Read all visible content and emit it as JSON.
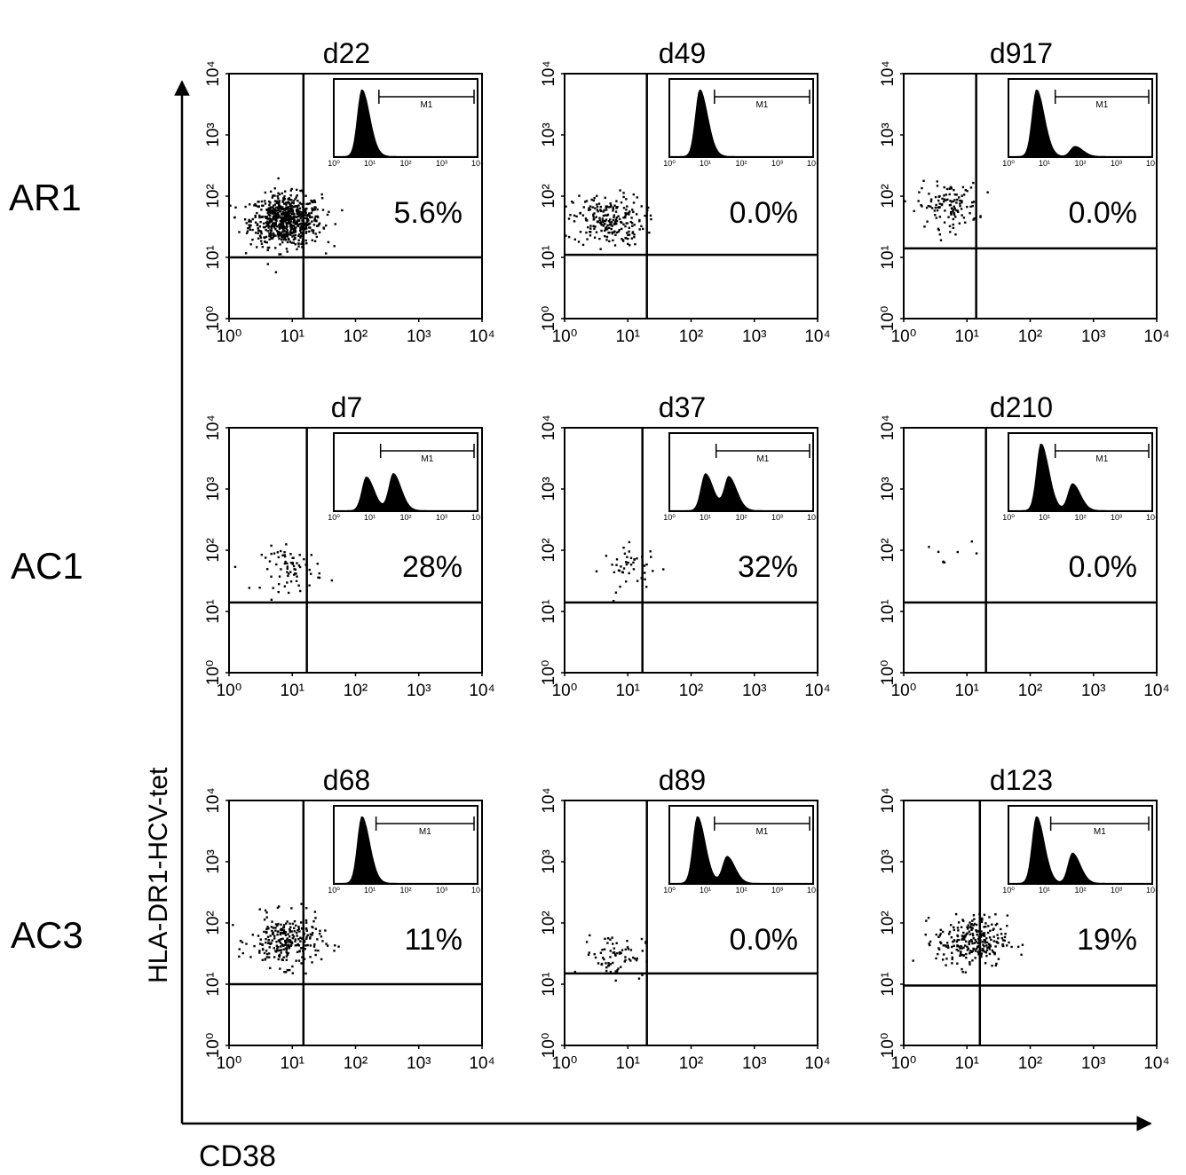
{
  "figure": {
    "x_axis_label": "CD38",
    "y_axis_label": "HLA-DR1-HCV-tet",
    "row_labels": [
      "AR1",
      "AC1",
      "AC3"
    ]
  },
  "chart_data": [
    {
      "type": "scatter",
      "row": "AR1",
      "title": "d22",
      "percent_label": "5.6%",
      "xlim": [
        1,
        10000
      ],
      "ylim": [
        1,
        10000
      ],
      "scale": "log",
      "tick_labels": [
        "10⁰",
        "10¹",
        "10²",
        "10³",
        "10⁴"
      ],
      "x_gate": 15,
      "y_gate": 10,
      "cluster": {
        "center_x": 8,
        "center_y": 40,
        "n_points": 700
      },
      "inset_histogram": {
        "x_tick_labels": [
          "10⁰",
          "10¹",
          "10²",
          "10³",
          "10⁴"
        ],
        "marker_label": "M1",
        "marker_range": [
          18,
          10000
        ],
        "peaks": [
          [
            6,
            1.0
          ]
        ]
      }
    },
    {
      "type": "scatter",
      "row": "AR1",
      "title": "d49",
      "percent_label": "0.0%",
      "xlim": [
        1,
        10000
      ],
      "ylim": [
        1,
        10000
      ],
      "scale": "log",
      "tick_labels": [
        "10⁰",
        "10¹",
        "10²",
        "10³",
        "10⁴"
      ],
      "x_gate": 20,
      "y_gate": 11,
      "cluster": {
        "center_x": 5,
        "center_y": 40,
        "n_points": 220
      },
      "inset_histogram": {
        "x_tick_labels": [
          "10⁰",
          "10¹",
          "10²",
          "10³",
          "10⁴"
        ],
        "marker_label": "M1",
        "marker_range": [
          18,
          10000
        ],
        "peaks": [
          [
            7,
            1.0
          ]
        ]
      }
    },
    {
      "type": "scatter",
      "row": "AR1",
      "title": "d917",
      "percent_label": "0.0%",
      "xlim": [
        1,
        10000
      ],
      "ylim": [
        1,
        10000
      ],
      "scale": "log",
      "tick_labels": [
        "10⁰",
        "10¹",
        "10²",
        "10³",
        "10⁴"
      ],
      "x_gate": 14,
      "y_gate": 14,
      "cluster": {
        "center_x": 5,
        "center_y": 70,
        "n_points": 120
      },
      "inset_histogram": {
        "x_tick_labels": [
          "10⁰",
          "10¹",
          "10²",
          "10³",
          "10⁴"
        ],
        "marker_label": "M1",
        "marker_range": [
          20,
          10000
        ],
        "peaks": [
          [
            6,
            1.0
          ],
          [
            70,
            0.15
          ]
        ]
      }
    },
    {
      "type": "scatter",
      "row": "AC1",
      "title": "d7",
      "percent_label": "28%",
      "xlim": [
        1,
        10000
      ],
      "ylim": [
        1,
        10000
      ],
      "scale": "log",
      "tick_labels": [
        "10⁰",
        "10¹",
        "10²",
        "10³",
        "10⁴"
      ],
      "x_gate": 17,
      "y_gate": 14,
      "cluster": {
        "center_x": 10,
        "center_y": 50,
        "n_points": 70
      },
      "inset_histogram": {
        "x_tick_labels": [
          "10⁰",
          "10¹",
          "10²",
          "10³",
          "10⁴"
        ],
        "marker_label": "M1",
        "marker_range": [
          20,
          10000
        ],
        "peaks": [
          [
            8,
            0.5
          ],
          [
            45,
            0.55
          ]
        ]
      }
    },
    {
      "type": "scatter",
      "row": "AC1",
      "title": "d37",
      "percent_label": "32%",
      "xlim": [
        1,
        10000
      ],
      "ylim": [
        1,
        10000
      ],
      "scale": "log",
      "tick_labels": [
        "10⁰",
        "10¹",
        "10²",
        "10³",
        "10⁴"
      ],
      "x_gate": 17,
      "y_gate": 14,
      "cluster": {
        "center_x": 12,
        "center_y": 50,
        "n_points": 45
      },
      "inset_histogram": {
        "x_tick_labels": [
          "10⁰",
          "10¹",
          "10²",
          "10³",
          "10⁴"
        ],
        "marker_label": "M1",
        "marker_range": [
          20,
          10000
        ],
        "peaks": [
          [
            10,
            0.55
          ],
          [
            45,
            0.5
          ]
        ]
      }
    },
    {
      "type": "scatter",
      "row": "AC1",
      "title": "d210",
      "percent_label": "0.0%",
      "xlim": [
        1,
        10000
      ],
      "ylim": [
        1,
        10000
      ],
      "scale": "log",
      "tick_labels": [
        "10⁰",
        "10¹",
        "10²",
        "10³",
        "10⁴"
      ],
      "x_gate": 20,
      "y_gate": 14,
      "cluster": {
        "center_x": 5,
        "center_y": 80,
        "n_points": 8
      },
      "inset_histogram": {
        "x_tick_labels": [
          "10⁰",
          "10¹",
          "10²",
          "10³",
          "10⁴"
        ],
        "marker_label": "M1",
        "marker_range": [
          20,
          10000
        ],
        "peaks": [
          [
            8,
            1.0
          ],
          [
            60,
            0.4
          ]
        ]
      }
    },
    {
      "type": "scatter",
      "row": "AC3",
      "title": "d68",
      "percent_label": "11%",
      "xlim": [
        1,
        10000
      ],
      "ylim": [
        1,
        10000
      ],
      "scale": "log",
      "tick_labels": [
        "10⁰",
        "10¹",
        "10²",
        "10³",
        "10⁴"
      ],
      "x_gate": 15,
      "y_gate": 10,
      "cluster": {
        "center_x": 8,
        "center_y": 50,
        "n_points": 260
      },
      "inset_histogram": {
        "x_tick_labels": [
          "10⁰",
          "10¹",
          "10²",
          "10³",
          "10⁴"
        ],
        "marker_label": "M1",
        "marker_range": [
          15,
          10000
        ],
        "peaks": [
          [
            6,
            1.0
          ]
        ]
      }
    },
    {
      "type": "scatter",
      "row": "AC3",
      "title": "d89",
      "percent_label": "0.0%",
      "xlim": [
        1,
        10000
      ],
      "ylim": [
        1,
        10000
      ],
      "scale": "log",
      "tick_labels": [
        "10⁰",
        "10¹",
        "10²",
        "10³",
        "10⁴"
      ],
      "x_gate": 20,
      "y_gate": 15,
      "cluster": {
        "center_x": 6,
        "center_y": 30,
        "n_points": 70
      },
      "inset_histogram": {
        "x_tick_labels": [
          "10⁰",
          "10¹",
          "10²",
          "10³",
          "10⁴"
        ],
        "marker_label": "M1",
        "marker_range": [
          18,
          10000
        ],
        "peaks": [
          [
            6,
            1.0
          ],
          [
            40,
            0.4
          ]
        ]
      }
    },
    {
      "type": "scatter",
      "row": "AC3",
      "title": "d123",
      "percent_label": "19%",
      "xlim": [
        1,
        10000
      ],
      "ylim": [
        1,
        10000
      ],
      "scale": "log",
      "tick_labels": [
        "10⁰",
        "10¹",
        "10²",
        "10³",
        "10⁴"
      ],
      "x_gate": 16,
      "y_gate": 9.5,
      "cluster": {
        "center_x": 12,
        "center_y": 50,
        "n_points": 260
      },
      "inset_histogram": {
        "x_tick_labels": [
          "10⁰",
          "10¹",
          "10²",
          "10³",
          "10⁴"
        ],
        "marker_label": "M1",
        "marker_range": [
          15,
          10000
        ],
        "peaks": [
          [
            6,
            1.0
          ],
          [
            60,
            0.45
          ]
        ]
      }
    }
  ]
}
